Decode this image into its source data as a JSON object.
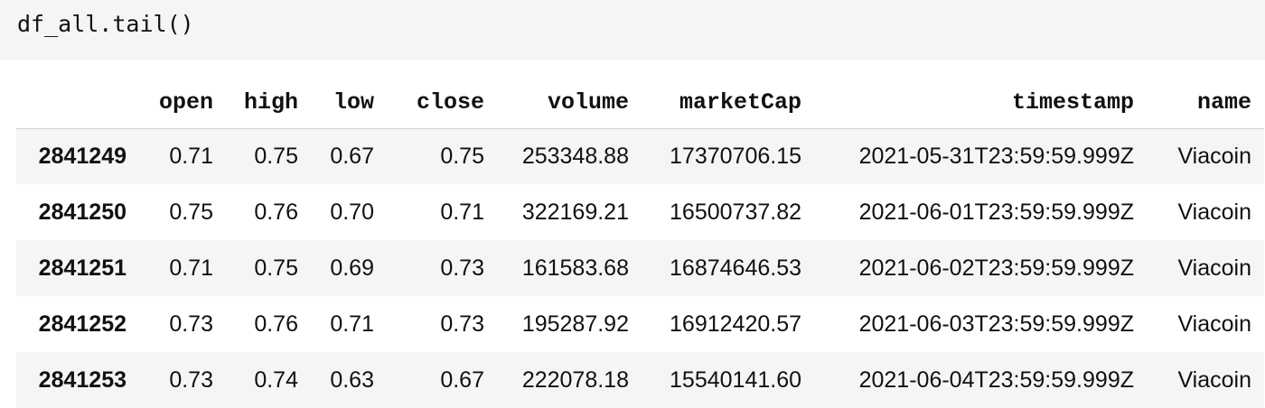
{
  "code_cell": {
    "source": "df_all.tail()"
  },
  "dataframe": {
    "columns": [
      "open",
      "high",
      "low",
      "close",
      "volume",
      "marketCap",
      "timestamp",
      "name"
    ],
    "rows": [
      {
        "index": "2841249",
        "cells": [
          "0.71",
          "0.75",
          "0.67",
          "0.75",
          "253348.88",
          "17370706.15",
          "2021-05-31T23:59:59.999Z",
          "Viacoin"
        ]
      },
      {
        "index": "2841250",
        "cells": [
          "0.75",
          "0.76",
          "0.70",
          "0.71",
          "322169.21",
          "16500737.82",
          "2021-06-01T23:59:59.999Z",
          "Viacoin"
        ]
      },
      {
        "index": "2841251",
        "cells": [
          "0.71",
          "0.75",
          "0.69",
          "0.73",
          "161583.68",
          "16874646.53",
          "2021-06-02T23:59:59.999Z",
          "Viacoin"
        ]
      },
      {
        "index": "2841252",
        "cells": [
          "0.73",
          "0.76",
          "0.71",
          "0.73",
          "195287.92",
          "16912420.57",
          "2021-06-03T23:59:59.999Z",
          "Viacoin"
        ]
      },
      {
        "index": "2841253",
        "cells": [
          "0.73",
          "0.74",
          "0.63",
          "0.67",
          "222078.18",
          "15540141.60",
          "2021-06-04T23:59:59.999Z",
          "Viacoin"
        ]
      }
    ]
  }
}
